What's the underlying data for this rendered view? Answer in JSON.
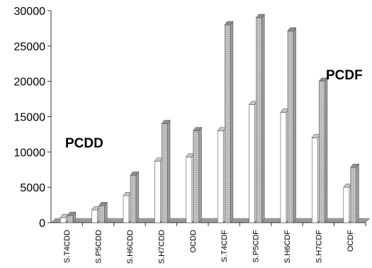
{
  "chart_data": {
    "type": "bar",
    "title": "",
    "xlabel": "",
    "ylabel": "",
    "ylim": [
      0,
      30000
    ],
    "yticks": [
      "0",
      "5000",
      "10000",
      "15000",
      "20000",
      "25000",
      "30000"
    ],
    "categories": [
      "S.T4CDD",
      "S.P5CDD",
      "S.H6CDD",
      "S.H7CDD",
      "OCDD",
      "S.T4CDF",
      "S.P5CDF",
      "S.H6CDF",
      "S.H7CDF",
      "OCDF"
    ],
    "series": [
      {
        "values": [
          700,
          1800,
          3800,
          8700,
          9300,
          13000,
          16700,
          15600,
          12000,
          5000
        ]
      },
      {
        "values": [
          1000,
          2400,
          6700,
          14000,
          13000,
          28000,
          29000,
          27100,
          20000,
          7800
        ]
      }
    ],
    "annotations": [
      {
        "text": "PCDD"
      },
      {
        "text": "PCDF"
      }
    ],
    "colors": {
      "series1_fill": "#ffffff",
      "series1_top": "#c8c8c8",
      "series2_fill": "#bdbdbd",
      "series2_top": "#8f8f8f",
      "floor": "#9a9a9a",
      "axis": "#333333"
    },
    "grid": false,
    "legend": "none"
  }
}
